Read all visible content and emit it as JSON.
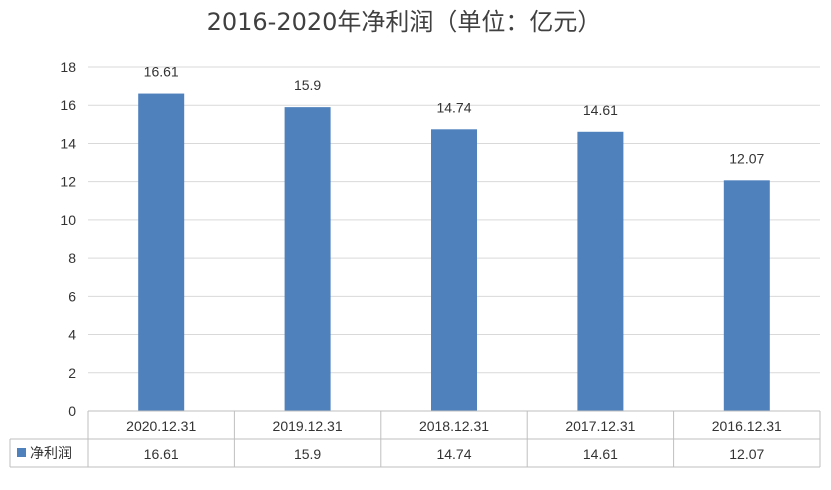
{
  "chart_data": {
    "type": "bar",
    "title": "2016-2020年净利润（单位：亿元）",
    "categories": [
      "2020.12.31",
      "2019.12.31",
      "2018.12.31",
      "2017.12.31",
      "2016.12.31"
    ],
    "series": [
      {
        "name": "净利润",
        "values": [
          16.61,
          15.9,
          14.74,
          14.61,
          12.07
        ],
        "color": "#4f81bd"
      }
    ],
    "ylim": [
      0,
      18
    ],
    "yticks": [
      0,
      2,
      4,
      6,
      8,
      10,
      12,
      14,
      16,
      18
    ],
    "grid": true,
    "data_labels": [
      "16.61",
      "15.9",
      "14.74",
      "14.61",
      "12.07"
    ],
    "data_table": true
  }
}
